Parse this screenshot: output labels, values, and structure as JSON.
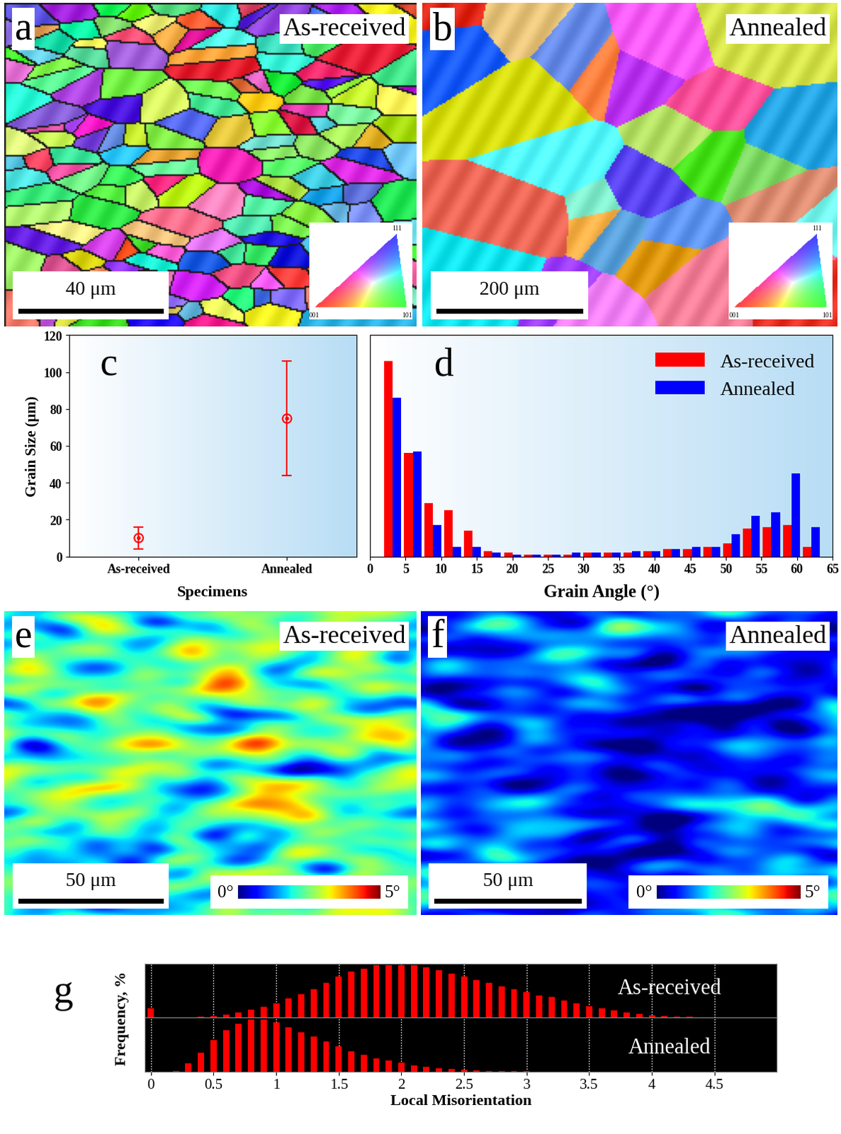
{
  "chart_data": [
    {
      "type": "orientation_map",
      "label": "a",
      "title": "As-received",
      "scale_bar": "40 μm",
      "ipf_labels": [
        "001",
        "101",
        "111"
      ]
    },
    {
      "type": "orientation_map",
      "label": "b",
      "title": "Annealed",
      "scale_bar": "200 μm",
      "ipf_labels": [
        "001",
        "101",
        "111"
      ]
    },
    {
      "type": "scatter",
      "label": "c",
      "xlabel": "Specimens",
      "ylabel": "Grain Size (μm)",
      "categories": [
        "As-received",
        "Annealed"
      ],
      "values": [
        10,
        75
      ],
      "errors": [
        6,
        31
      ],
      "color": "#ff0000",
      "ylim": [
        0,
        120
      ],
      "yticks": [
        0,
        20,
        40,
        60,
        80,
        100,
        120
      ]
    },
    {
      "type": "bar",
      "label": "d",
      "xlabel": "Grain Angle (°)",
      "x": [
        3.2,
        6.0,
        8.8,
        11.6,
        14.4,
        17.2,
        20.0,
        22.8,
        25.6,
        28.4,
        31.2,
        34.0,
        36.8,
        39.6,
        42.4,
        45.2,
        48.0,
        50.8,
        53.6,
        56.4,
        59.2,
        62.0
      ],
      "series": [
        {
          "name": "As-received",
          "color": "#ff0000",
          "values": [
            106,
            56,
            29,
            25,
            14,
            3,
            2,
            1,
            1,
            1,
            2,
            2,
            2,
            3,
            4,
            4,
            5,
            7,
            15,
            16,
            17,
            5
          ]
        },
        {
          "name": "Annealed",
          "color": "#0000ff",
          "values": [
            86,
            57,
            17,
            5,
            5,
            2,
            1,
            1,
            1,
            2,
            2,
            2,
            3,
            3,
            4,
            5,
            5,
            12,
            22,
            24,
            45,
            16
          ]
        }
      ],
      "xlim": [
        0,
        65
      ],
      "xticks": [
        0,
        5,
        10,
        15,
        20,
        25,
        30,
        35,
        40,
        45,
        50,
        55,
        60,
        65
      ],
      "ylim": [
        0,
        120
      ],
      "tick_labels": "x",
      "legend": "upper right"
    },
    {
      "type": "kam_map",
      "label": "e",
      "title": "As-received",
      "scale_bar": "50 μm",
      "colorbar": {
        "range": [
          0,
          5
        ],
        "ticks": [
          {
            "value": 0,
            "label": "0°"
          },
          {
            "value": 5,
            "label": "5°"
          }
        ]
      }
    },
    {
      "type": "kam_map",
      "label": "f",
      "title": "Annealed",
      "scale_bar": "50 μm",
      "colorbar": {
        "range": [
          0,
          5
        ],
        "ticks": [
          {
            "value": 0,
            "label": "0°"
          },
          {
            "value": 5,
            "label": "5°"
          }
        ]
      }
    },
    {
      "type": "bar",
      "label": "g",
      "xlabel": "Local Misorientation",
      "ylabel": "Frequency, %",
      "series": [
        {
          "name": "As-received",
          "color": "#ff0000",
          "x": [
            0.0,
            0.4,
            0.5,
            0.6,
            0.7,
            0.8,
            0.9,
            1.0,
            1.1,
            1.2,
            1.3,
            1.4,
            1.5,
            1.6,
            1.7,
            1.8,
            1.9,
            2.0,
            2.1,
            2.2,
            2.3,
            2.4,
            2.5,
            2.6,
            2.7,
            2.8,
            2.9,
            3.0,
            3.1,
            3.2,
            3.3,
            3.4,
            3.5,
            3.6,
            3.7,
            3.8,
            3.9,
            4.0,
            4.1,
            4.2,
            4.3,
            4.4
          ],
          "values": [
            0.6,
            0.05,
            0.1,
            0.2,
            0.35,
            0.5,
            0.7,
            0.9,
            1.2,
            1.5,
            1.8,
            2.2,
            2.6,
            2.9,
            3.1,
            3.3,
            3.3,
            3.3,
            3.3,
            3.2,
            3.0,
            2.8,
            2.6,
            2.4,
            2.2,
            2.0,
            1.8,
            1.6,
            1.4,
            1.3,
            1.1,
            0.9,
            0.75,
            0.6,
            0.45,
            0.35,
            0.25,
            0.15,
            0.1,
            0.06,
            0.04,
            0.02
          ]
        },
        {
          "name": "Annealed",
          "color": "#ff0000",
          "x": [
            0.2,
            0.3,
            0.4,
            0.5,
            0.6,
            0.7,
            0.8,
            0.9,
            1.0,
            1.1,
            1.2,
            1.3,
            1.4,
            1.5,
            1.6,
            1.7,
            1.8,
            1.9,
            2.0,
            2.1,
            2.2,
            2.3,
            2.4,
            2.5,
            2.6,
            2.7,
            2.8,
            2.9,
            3.0
          ],
          "values": [
            0.05,
            0.5,
            1.2,
            2.0,
            2.6,
            3.0,
            3.3,
            3.3,
            3.1,
            2.8,
            2.5,
            2.2,
            1.9,
            1.6,
            1.3,
            1.05,
            0.85,
            0.7,
            0.55,
            0.4,
            0.3,
            0.22,
            0.15,
            0.1,
            0.07,
            0.05,
            0.03,
            0.02,
            0.01
          ]
        }
      ],
      "xlim": [
        -0.05,
        5.0
      ],
      "xticks": [
        0,
        0.5,
        1,
        1.5,
        2,
        2.5,
        3,
        3.5,
        4,
        4.5
      ],
      "ylim": [
        0,
        3.4
      ],
      "grid": true,
      "tick_labels": "x"
    }
  ]
}
